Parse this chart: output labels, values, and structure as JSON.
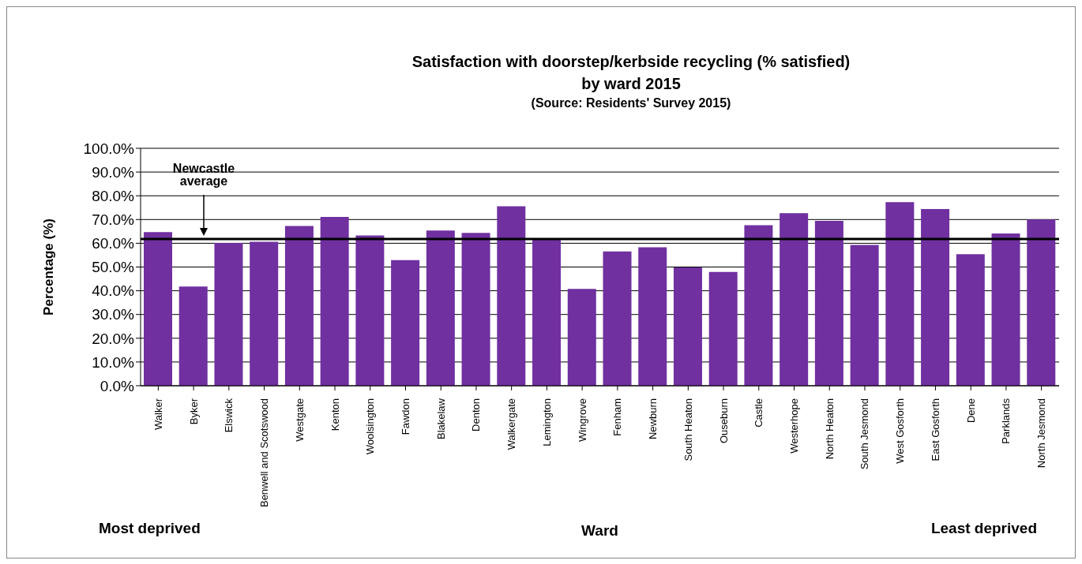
{
  "chart_data": {
    "type": "bar",
    "title": "Satisfaction with doorstep/kerbside recycling (% satisfied) by ward 2015",
    "subtitle": "(Source: Residents' Survey 2015)",
    "xlabel": "Ward",
    "ylabel": "Percentage (%)",
    "categories": [
      "Walker",
      "Byker",
      "Elswick",
      "Benwell and Scotswood",
      "Westgate",
      "Kenton",
      "Woolsington",
      "Fawdon",
      "Blakelaw",
      "Denton",
      "Walkergate",
      "Lemington",
      "Wingrove",
      "Fenham",
      "Newburn",
      "South Heaton",
      "Ouseburn",
      "Castle",
      "Westerhope",
      "North Heaton",
      "South Jesmond",
      "West Gosforth",
      "East Gosforth",
      "Dene",
      "Parklands",
      "North Jesmond"
    ],
    "values": [
      64.7,
      41.8,
      60.1,
      60.6,
      67.3,
      71.1,
      63.3,
      52.9,
      65.4,
      64.4,
      75.6,
      61.5,
      40.8,
      56.6,
      58.3,
      49.8,
      47.9,
      67.6,
      72.7,
      69.4,
      59.3,
      77.3,
      74.4,
      55.4,
      64.1,
      70.0
    ],
    "color": "#7030a0",
    "ylim": [
      0,
      100
    ],
    "yticks": [
      {
        "value": 0,
        "label": "0.0%"
      },
      {
        "value": 10,
        "label": "10.0%"
      },
      {
        "value": 20,
        "label": "20.0%"
      },
      {
        "value": 30,
        "label": "30.0%"
      },
      {
        "value": 40,
        "label": "40.0%"
      },
      {
        "value": 50,
        "label": "50.0%"
      },
      {
        "value": 60,
        "label": "60.0%"
      },
      {
        "value": 70,
        "label": "70.0%"
      },
      {
        "value": 80,
        "label": "80.0%"
      },
      {
        "value": 90,
        "label": "90.0%"
      },
      {
        "value": 100,
        "label": "100.0%"
      }
    ],
    "grid": "y",
    "ref_lines": [
      {
        "axis": "y",
        "value": 61.8,
        "label": "Newcastle average",
        "color": "#000000"
      }
    ],
    "annotations": [
      "Most deprived",
      "Least deprived"
    ]
  }
}
